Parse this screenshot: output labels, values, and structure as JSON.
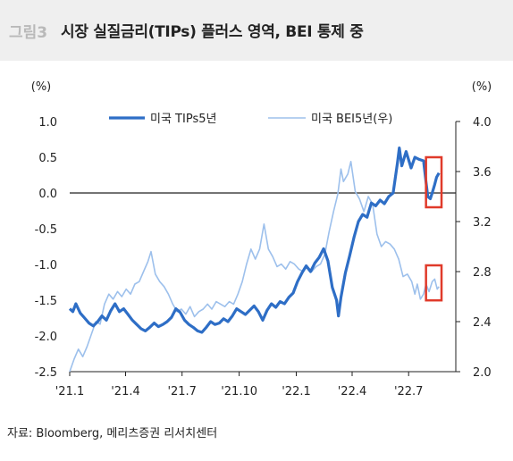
{
  "header": {
    "figure_label": "그림3",
    "title": "시장 실질금리(TIPs) 플러스 영역, BEI 통제 중"
  },
  "source": "자료: Bloomberg, 메리츠증권 리서치센터",
  "colors": {
    "tips": "#2e6ec6",
    "bei": "#9dc0ec",
    "highlight": "#e03a2a",
    "axis": "#222222",
    "header_bg": "#efefef"
  },
  "chart_data": {
    "type": "line",
    "left_unit": "(%)",
    "right_unit": "(%)",
    "x_range": [
      "2021-01-01",
      "2022-09-15"
    ],
    "x_ticks": [
      {
        "date": "2021-01-01",
        "label": "'21.1"
      },
      {
        "date": "2021-04-01",
        "label": "'21.4"
      },
      {
        "date": "2021-07-01",
        "label": "'21.7"
      },
      {
        "date": "2021-10-01",
        "label": "'21.10"
      },
      {
        "date": "2022-01-01",
        "label": "'22.1"
      },
      {
        "date": "2022-04-01",
        "label": "'22.4"
      },
      {
        "date": "2022-07-01",
        "label": "'22.7"
      }
    ],
    "left_axis": {
      "min": -2.5,
      "max": 1.0,
      "ticks": [
        "1.0",
        "0.5",
        "0.0",
        "-0.5",
        "-1.0",
        "-1.5",
        "-2.0",
        "-2.5"
      ]
    },
    "right_axis": {
      "min": 2.0,
      "max": 4.0,
      "ticks": [
        "4.0",
        "3.6",
        "3.2",
        "2.8",
        "2.4",
        "2.0"
      ]
    },
    "series": [
      {
        "name": "미국 TIPs5년",
        "axis": "left",
        "points": [
          [
            "2021-01-01",
            -1.62
          ],
          [
            "2021-01-06",
            -1.66
          ],
          [
            "2021-01-11",
            -1.55
          ],
          [
            "2021-01-18",
            -1.68
          ],
          [
            "2021-01-25",
            -1.75
          ],
          [
            "2021-02-01",
            -1.82
          ],
          [
            "2021-02-08",
            -1.86
          ],
          [
            "2021-02-15",
            -1.8
          ],
          [
            "2021-02-22",
            -1.72
          ],
          [
            "2021-03-01",
            -1.78
          ],
          [
            "2021-03-08",
            -1.65
          ],
          [
            "2021-03-15",
            -1.55
          ],
          [
            "2021-03-22",
            -1.66
          ],
          [
            "2021-03-29",
            -1.62
          ],
          [
            "2021-04-05",
            -1.7
          ],
          [
            "2021-04-12",
            -1.78
          ],
          [
            "2021-04-19",
            -1.84
          ],
          [
            "2021-04-26",
            -1.9
          ],
          [
            "2021-05-03",
            -1.93
          ],
          [
            "2021-05-10",
            -1.88
          ],
          [
            "2021-05-17",
            -1.82
          ],
          [
            "2021-05-24",
            -1.87
          ],
          [
            "2021-05-31",
            -1.84
          ],
          [
            "2021-06-07",
            -1.8
          ],
          [
            "2021-06-14",
            -1.74
          ],
          [
            "2021-06-21",
            -1.62
          ],
          [
            "2021-06-28",
            -1.67
          ],
          [
            "2021-07-05",
            -1.78
          ],
          [
            "2021-07-12",
            -1.84
          ],
          [
            "2021-07-19",
            -1.88
          ],
          [
            "2021-07-26",
            -1.93
          ],
          [
            "2021-08-02",
            -1.95
          ],
          [
            "2021-08-09",
            -1.88
          ],
          [
            "2021-08-16",
            -1.8
          ],
          [
            "2021-08-23",
            -1.84
          ],
          [
            "2021-08-30",
            -1.82
          ],
          [
            "2021-09-06",
            -1.76
          ],
          [
            "2021-09-13",
            -1.8
          ],
          [
            "2021-09-20",
            -1.72
          ],
          [
            "2021-09-27",
            -1.62
          ],
          [
            "2021-10-04",
            -1.66
          ],
          [
            "2021-10-11",
            -1.7
          ],
          [
            "2021-10-18",
            -1.64
          ],
          [
            "2021-10-25",
            -1.58
          ],
          [
            "2021-11-01",
            -1.66
          ],
          [
            "2021-11-08",
            -1.78
          ],
          [
            "2021-11-15",
            -1.64
          ],
          [
            "2021-11-22",
            -1.55
          ],
          [
            "2021-11-29",
            -1.6
          ],
          [
            "2021-12-06",
            -1.52
          ],
          [
            "2021-12-13",
            -1.55
          ],
          [
            "2021-12-20",
            -1.46
          ],
          [
            "2021-12-27",
            -1.4
          ],
          [
            "2022-01-03",
            -1.24
          ],
          [
            "2022-01-10",
            -1.12
          ],
          [
            "2022-01-17",
            -1.02
          ],
          [
            "2022-01-24",
            -1.1
          ],
          [
            "2022-01-31",
            -0.98
          ],
          [
            "2022-02-07",
            -0.9
          ],
          [
            "2022-02-14",
            -0.78
          ],
          [
            "2022-02-21",
            -0.95
          ],
          [
            "2022-02-28",
            -1.32
          ],
          [
            "2022-03-07",
            -1.5
          ],
          [
            "2022-03-10",
            -1.72
          ],
          [
            "2022-03-14",
            -1.46
          ],
          [
            "2022-03-21",
            -1.12
          ],
          [
            "2022-03-28",
            -0.88
          ],
          [
            "2022-04-04",
            -0.62
          ],
          [
            "2022-04-11",
            -0.4
          ],
          [
            "2022-04-18",
            -0.3
          ],
          [
            "2022-04-25",
            -0.34
          ],
          [
            "2022-05-02",
            -0.14
          ],
          [
            "2022-05-09",
            -0.18
          ],
          [
            "2022-05-16",
            -0.1
          ],
          [
            "2022-05-23",
            -0.15
          ],
          [
            "2022-05-30",
            -0.05
          ],
          [
            "2022-06-06",
            0.0
          ],
          [
            "2022-06-13",
            0.42
          ],
          [
            "2022-06-16",
            0.63
          ],
          [
            "2022-06-20",
            0.38
          ],
          [
            "2022-06-27",
            0.58
          ],
          [
            "2022-07-05",
            0.35
          ],
          [
            "2022-07-11",
            0.5
          ],
          [
            "2022-07-18",
            0.47
          ],
          [
            "2022-07-25",
            0.45
          ],
          [
            "2022-07-29",
            0.15
          ],
          [
            "2022-08-01",
            -0.05
          ],
          [
            "2022-08-05",
            -0.08
          ],
          [
            "2022-08-08",
            0.0
          ],
          [
            "2022-08-12",
            0.12
          ],
          [
            "2022-08-15",
            0.22
          ],
          [
            "2022-08-19",
            0.28
          ]
        ]
      },
      {
        "name": "미국 BEI5년(우)",
        "axis": "right",
        "points": [
          [
            "2021-01-01",
            2.0
          ],
          [
            "2021-01-08",
            2.1
          ],
          [
            "2021-01-15",
            2.18
          ],
          [
            "2021-01-22",
            2.12
          ],
          [
            "2021-01-29",
            2.2
          ],
          [
            "2021-02-05",
            2.3
          ],
          [
            "2021-02-12",
            2.4
          ],
          [
            "2021-02-19",
            2.38
          ],
          [
            "2021-02-26",
            2.54
          ],
          [
            "2021-03-05",
            2.62
          ],
          [
            "2021-03-12",
            2.58
          ],
          [
            "2021-03-19",
            2.64
          ],
          [
            "2021-03-26",
            2.6
          ],
          [
            "2021-04-02",
            2.66
          ],
          [
            "2021-04-09",
            2.62
          ],
          [
            "2021-04-16",
            2.7
          ],
          [
            "2021-04-23",
            2.72
          ],
          [
            "2021-04-30",
            2.8
          ],
          [
            "2021-05-07",
            2.88
          ],
          [
            "2021-05-12",
            2.96
          ],
          [
            "2021-05-19",
            2.78
          ],
          [
            "2021-05-26",
            2.72
          ],
          [
            "2021-06-02",
            2.68
          ],
          [
            "2021-06-09",
            2.62
          ],
          [
            "2021-06-16",
            2.54
          ],
          [
            "2021-06-23",
            2.48
          ],
          [
            "2021-06-30",
            2.5
          ],
          [
            "2021-07-07",
            2.46
          ],
          [
            "2021-07-14",
            2.52
          ],
          [
            "2021-07-21",
            2.44
          ],
          [
            "2021-07-28",
            2.48
          ],
          [
            "2021-08-04",
            2.5
          ],
          [
            "2021-08-11",
            2.54
          ],
          [
            "2021-08-18",
            2.5
          ],
          [
            "2021-08-25",
            2.56
          ],
          [
            "2021-09-01",
            2.54
          ],
          [
            "2021-09-08",
            2.52
          ],
          [
            "2021-09-15",
            2.56
          ],
          [
            "2021-09-22",
            2.54
          ],
          [
            "2021-09-29",
            2.62
          ],
          [
            "2021-10-06",
            2.72
          ],
          [
            "2021-10-13",
            2.86
          ],
          [
            "2021-10-20",
            2.98
          ],
          [
            "2021-10-27",
            2.9
          ],
          [
            "2021-11-03",
            2.98
          ],
          [
            "2021-11-10",
            3.18
          ],
          [
            "2021-11-17",
            2.98
          ],
          [
            "2021-11-24",
            2.92
          ],
          [
            "2021-12-01",
            2.84
          ],
          [
            "2021-12-08",
            2.86
          ],
          [
            "2021-12-15",
            2.82
          ],
          [
            "2021-12-22",
            2.88
          ],
          [
            "2021-12-29",
            2.86
          ],
          [
            "2022-01-05",
            2.82
          ],
          [
            "2022-01-12",
            2.8
          ],
          [
            "2022-01-19",
            2.84
          ],
          [
            "2022-01-26",
            2.8
          ],
          [
            "2022-02-02",
            2.84
          ],
          [
            "2022-02-09",
            2.86
          ],
          [
            "2022-02-16",
            2.94
          ],
          [
            "2022-02-23",
            3.12
          ],
          [
            "2022-03-02",
            3.28
          ],
          [
            "2022-03-09",
            3.42
          ],
          [
            "2022-03-14",
            3.62
          ],
          [
            "2022-03-18",
            3.52
          ],
          [
            "2022-03-25",
            3.58
          ],
          [
            "2022-03-30",
            3.68
          ],
          [
            "2022-04-06",
            3.44
          ],
          [
            "2022-04-13",
            3.38
          ],
          [
            "2022-04-20",
            3.28
          ],
          [
            "2022-04-27",
            3.4
          ],
          [
            "2022-05-04",
            3.34
          ],
          [
            "2022-05-11",
            3.1
          ],
          [
            "2022-05-18",
            3.0
          ],
          [
            "2022-05-25",
            3.04
          ],
          [
            "2022-06-01",
            3.02
          ],
          [
            "2022-06-08",
            2.98
          ],
          [
            "2022-06-15",
            2.9
          ],
          [
            "2022-06-22",
            2.76
          ],
          [
            "2022-06-29",
            2.78
          ],
          [
            "2022-07-06",
            2.72
          ],
          [
            "2022-07-11",
            2.62
          ],
          [
            "2022-07-15",
            2.7
          ],
          [
            "2022-07-20",
            2.58
          ],
          [
            "2022-07-25",
            2.62
          ],
          [
            "2022-07-29",
            2.7
          ],
          [
            "2022-08-03",
            2.64
          ],
          [
            "2022-08-08",
            2.72
          ],
          [
            "2022-08-12",
            2.74
          ],
          [
            "2022-08-16",
            2.66
          ],
          [
            "2022-08-19",
            2.68
          ]
        ]
      }
    ],
    "highlight_boxes": [
      {
        "axis": "left",
        "x_from": "2022-07-29",
        "x_to": "2022-08-23",
        "y_from": -0.2,
        "y_to": 0.5
      },
      {
        "axis": "right",
        "x_from": "2022-07-29",
        "x_to": "2022-08-23",
        "y_from": 2.57,
        "y_to": 2.85
      }
    ]
  }
}
